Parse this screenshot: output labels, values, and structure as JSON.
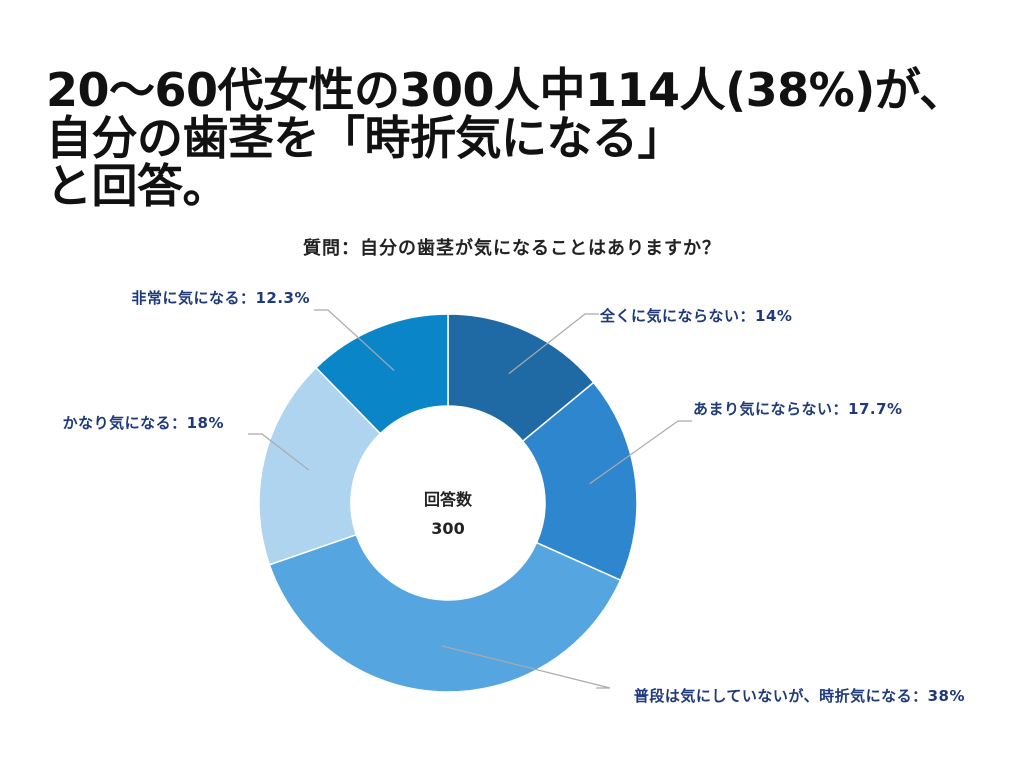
{
  "headline": {
    "line1": "20〜60代女性の300人中114人(38%)が、",
    "line2": "自分の歯茎を「時折気になる」",
    "line3": "と回答。"
  },
  "chart_data": {
    "type": "pie",
    "title": "質問：自分の歯茎が気になることはありますか？",
    "center_label": "回答数",
    "center_value": "300",
    "slices": [
      {
        "label": "全くに気にならない：14%",
        "value": 14,
        "color": "#1f6aa5"
      },
      {
        "label": "あまり気にならない：17.7%",
        "value": 17.7,
        "color": "#2e86cf"
      },
      {
        "label": "普段は気にしていないが、時折気になる：38%",
        "value": 38,
        "color": "#55a5e0"
      },
      {
        "label": "かなり気になる：18%",
        "value": 18,
        "color": "#aed4f0"
      },
      {
        "label": "非常に気になる：12.3%",
        "value": 12.3,
        "color": "#0a85c8"
      }
    ]
  }
}
